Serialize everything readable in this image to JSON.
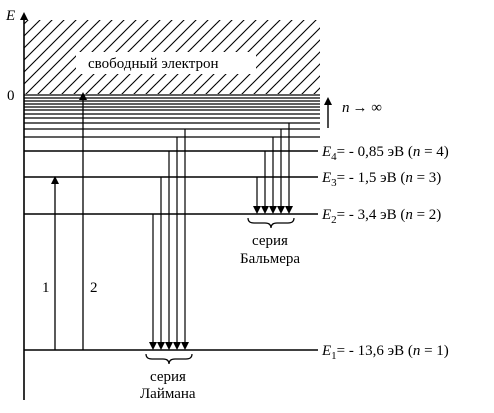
{
  "axis": {
    "label": "E",
    "zero": "0"
  },
  "free_electron": {
    "label": "свободный электрон"
  },
  "continuum": {
    "n_label": "n",
    "arrow_label": "→ ∞"
  },
  "levels": [
    {
      "symbol": "E",
      "index": "1",
      "equals": "= - 13,6 эВ (",
      "n": "n",
      "n_value": " = 1)"
    },
    {
      "symbol": "E",
      "index": "2",
      "equals": "= - 3,4 эВ (",
      "n": "n",
      "n_value": " = 2)"
    },
    {
      "symbol": "E",
      "index": "3",
      "equals": "= - 1,5 эВ (",
      "n": "n",
      "n_value": " = 3)"
    },
    {
      "symbol": "E",
      "index": "4",
      "equals": "= - 0,85 эВ (",
      "n": "n",
      "n_value": " = 4)"
    }
  ],
  "transitions": [
    {
      "label": "1"
    },
    {
      "label": "2"
    }
  ],
  "series": {
    "balmer": {
      "line1": "серия",
      "line2": "Бальмера"
    },
    "lyman": {
      "line1": "серия",
      "line2": "Лаймана"
    }
  }
}
